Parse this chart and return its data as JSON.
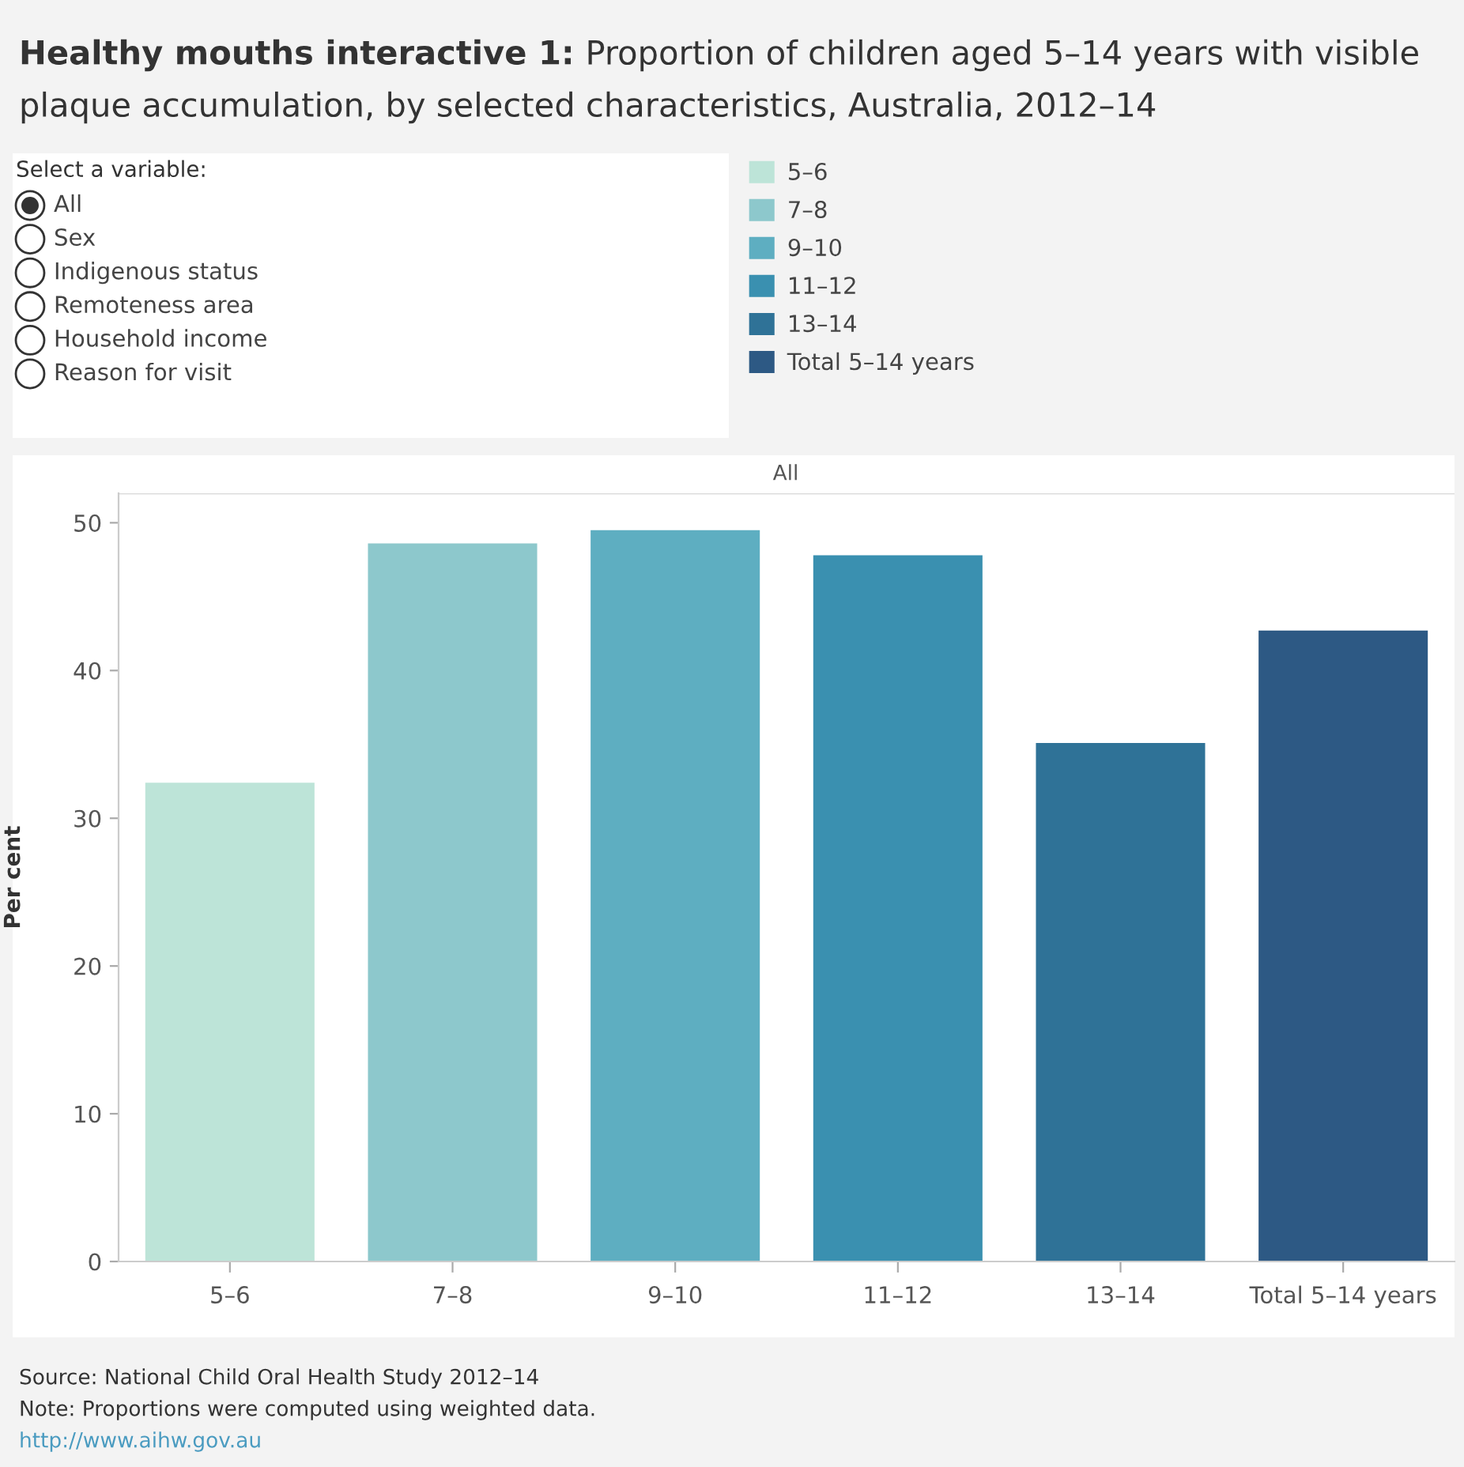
{
  "chart_data": {
    "type": "bar",
    "title": "Healthy mouths interactive 1: Proportion of children aged 5–14 years with visible plaque accumulation, by selected characteristics, Australia, 2012–14",
    "subtitle": "All",
    "ylabel": "Per cent",
    "categories": [
      "5–6",
      "7–8",
      "9–10",
      "11–12",
      "13–14",
      "Total 5–14 years"
    ],
    "series": [
      {
        "name": "5–6",
        "color": "#bde4d8",
        "values": [
          32.4,
          null,
          null,
          null,
          null,
          null
        ]
      },
      {
        "name": "7–8",
        "color": "#8dc8cc",
        "values": [
          null,
          48.6,
          null,
          null,
          null,
          null
        ]
      },
      {
        "name": "9–10",
        "color": "#5eaec1",
        "values": [
          null,
          null,
          49.5,
          null,
          null,
          null
        ]
      },
      {
        "name": "11–12",
        "color": "#3a90b0",
        "values": [
          null,
          null,
          null,
          47.8,
          null,
          null
        ]
      },
      {
        "name": "13–14",
        "color": "#2f7297",
        "values": [
          null,
          null,
          null,
          null,
          35.1,
          null
        ]
      },
      {
        "name": "Total 5–14 years",
        "color": "#2d5984",
        "values": [
          null,
          null,
          null,
          null,
          null,
          42.7
        ]
      }
    ],
    "ylim": [
      0,
      52
    ],
    "yticks": [
      0,
      10,
      20,
      30,
      40,
      50
    ],
    "grid": false,
    "legend": "top right",
    "annotations": [
      "Select a variable:",
      "All",
      "Sex",
      "Indigenous status",
      "Remoteness area",
      "Household income",
      "Reason for visit",
      "Source: National Child Oral Health Study 2012–14",
      "Note: Proportions were computed using weighted data.",
      "http://www.aihw.gov.au"
    ]
  }
}
